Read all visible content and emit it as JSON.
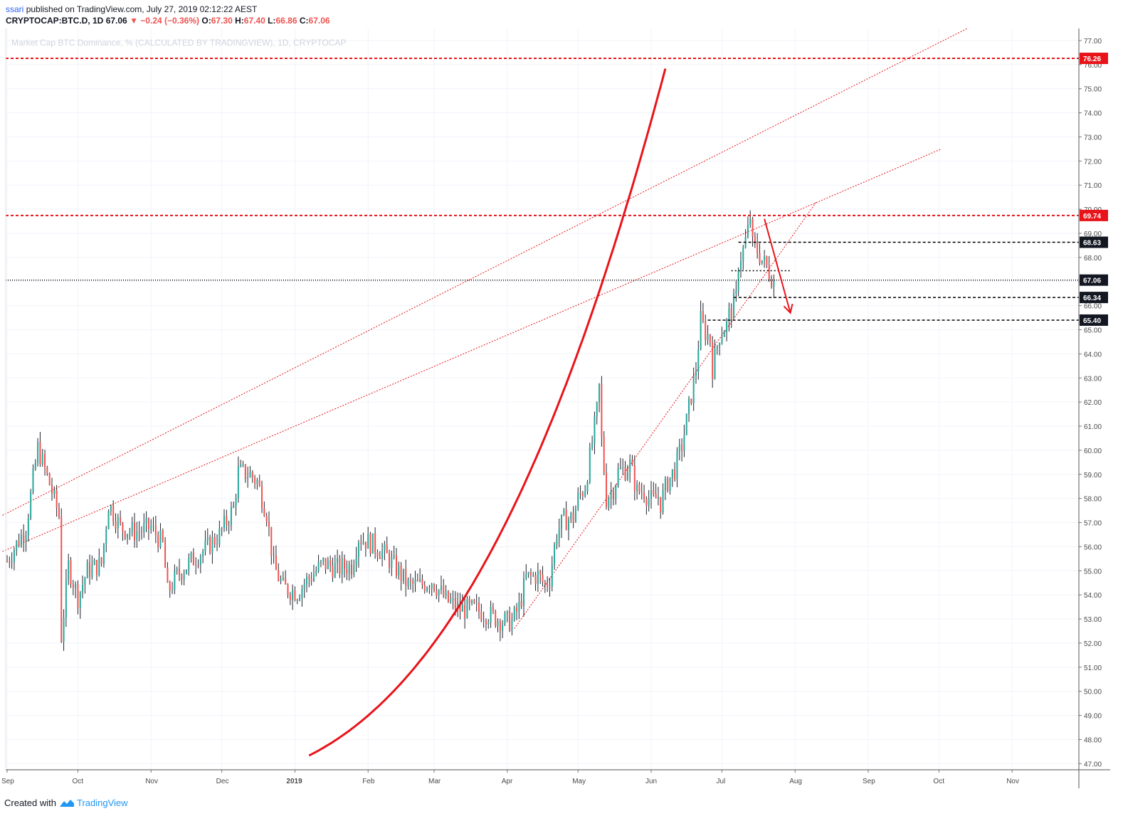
{
  "header": {
    "user": "ssari",
    "published": "published on TradingView.com, July 27, 2019 02:12:22 AEST",
    "symbol": "CRYPTOCAP:BTC.D, 1D",
    "last": "67.06",
    "change_arrow": "▼",
    "change": "−0.24 (−0.36%)",
    "o_label": "O:",
    "o": "67.30",
    "h_label": "H:",
    "h": "67.40",
    "l_label": "L:",
    "l": "66.86",
    "c_label": "C:",
    "c": "67.06"
  },
  "footer": {
    "created": "Created with",
    "brand": "TradingView"
  },
  "colors": {
    "up": "#26a69a",
    "down": "#ef5350",
    "annotation": "#e8141a",
    "dark_label": "#131722"
  },
  "chart_data": {
    "type": "bar",
    "title": "Market Cap BTC Dominance, % (CALCULATED BY TRADINGVIEW), 1D, CRYPTOCAP",
    "ylim": [
      46.8,
      77.5
    ],
    "y_ticks": [
      "47.00",
      "48.00",
      "49.00",
      "50.00",
      "51.00",
      "52.00",
      "53.00",
      "54.00",
      "55.00",
      "56.00",
      "57.00",
      "58.00",
      "59.00",
      "60.00",
      "61.00",
      "62.00",
      "63.00",
      "64.00",
      "65.00",
      "66.00",
      "67.00",
      "68.00",
      "69.00",
      "70.00",
      "71.00",
      "72.00",
      "73.00",
      "74.00",
      "75.00",
      "76.00",
      "77.00"
    ],
    "x_ticks": [
      {
        "label": "Sep",
        "day": 0
      },
      {
        "label": "Oct",
        "day": 30
      },
      {
        "label": "Nov",
        "day": 61
      },
      {
        "label": "Dec",
        "day": 91
      },
      {
        "label": "2019",
        "day": 122,
        "bold": true
      },
      {
        "label": "Feb",
        "day": 153
      },
      {
        "label": "Mar",
        "day": 181
      },
      {
        "label": "Apr",
        "day": 212
      },
      {
        "label": "May",
        "day": 242
      },
      {
        "label": "Jun",
        "day": 273
      },
      {
        "label": "Jul",
        "day": 303
      },
      {
        "label": "Aug",
        "day": 334
      },
      {
        "label": "Sep",
        "day": 365
      },
      {
        "label": "Oct",
        "day": 395
      },
      {
        "label": "Nov",
        "day": 426
      }
    ],
    "anchors": [
      [
        0,
        55.4
      ],
      [
        8,
        56.8
      ],
      [
        13,
        60.1
      ],
      [
        18,
        58.6
      ],
      [
        22,
        57.3
      ],
      [
        23,
        52.3
      ],
      [
        26,
        55.2
      ],
      [
        30,
        53.9
      ],
      [
        34,
        55.0
      ],
      [
        40,
        55.3
      ],
      [
        43,
        57.8
      ],
      [
        48,
        56.8
      ],
      [
        54,
        56.6
      ],
      [
        61,
        56.8
      ],
      [
        66,
        56.1
      ],
      [
        68,
        54.1
      ],
      [
        72,
        54.8
      ],
      [
        78,
        55.4
      ],
      [
        84,
        55.9
      ],
      [
        90,
        56.5
      ],
      [
        96,
        57.6
      ],
      [
        98,
        59.1
      ],
      [
        103,
        59.0
      ],
      [
        106,
        58.7
      ],
      [
        110,
        57.4
      ],
      [
        113,
        55.2
      ],
      [
        117,
        54.3
      ],
      [
        123,
        54.1
      ],
      [
        127,
        54.6
      ],
      [
        134,
        55.3
      ],
      [
        140,
        55.1
      ],
      [
        146,
        55.2
      ],
      [
        149,
        56.4
      ],
      [
        155,
        56.1
      ],
      [
        160,
        55.7
      ],
      [
        165,
        55.1
      ],
      [
        170,
        54.4
      ],
      [
        175,
        54.4
      ],
      [
        180,
        54.6
      ],
      [
        186,
        53.8
      ],
      [
        192,
        53.4
      ],
      [
        198,
        53.4
      ],
      [
        204,
        53.2
      ],
      [
        210,
        52.9
      ],
      [
        214,
        52.9
      ],
      [
        217,
        53.5
      ],
      [
        220,
        54.7
      ],
      [
        225,
        54.8
      ],
      [
        228,
        54.4
      ],
      [
        230,
        54.7
      ],
      [
        233,
        56.6
      ],
      [
        236,
        57.1
      ],
      [
        240,
        57.2
      ],
      [
        242,
        58.0
      ],
      [
        245,
        58.5
      ],
      [
        248,
        60.3
      ],
      [
        250,
        61.6
      ],
      [
        251,
        62.6
      ],
      [
        252,
        60.4
      ],
      [
        254,
        58.0
      ],
      [
        257,
        58.4
      ],
      [
        259,
        59.1
      ],
      [
        262,
        59.2
      ],
      [
        264,
        59.4
      ],
      [
        267,
        58.3
      ],
      [
        270,
        58.3
      ],
      [
        272,
        58.0
      ],
      [
        274,
        57.9
      ],
      [
        276,
        58.1
      ],
      [
        277,
        57.8
      ],
      [
        280,
        58.7
      ],
      [
        283,
        59.2
      ],
      [
        286,
        60.2
      ],
      [
        288,
        61.2
      ],
      [
        290,
        62.3
      ],
      [
        292,
        63.4
      ],
      [
        294,
        65.4
      ],
      [
        296,
        64.9
      ],
      [
        298,
        64.6
      ],
      [
        299,
        63.4
      ],
      [
        302,
        64.8
      ],
      [
        305,
        65.2
      ],
      [
        306,
        65.6
      ],
      [
        309,
        66.3
      ],
      [
        310,
        67.8
      ],
      [
        312,
        68.3
      ],
      [
        314,
        69.1
      ],
      [
        315,
        69.7
      ],
      [
        316,
        68.5
      ],
      [
        318,
        68.3
      ],
      [
        320,
        67.9
      ],
      [
        322,
        67.6
      ],
      [
        324,
        67.2
      ],
      [
        325,
        67.06
      ]
    ],
    "last_value": 67.06,
    "levels": [
      {
        "value": 76.26,
        "label": "76.26",
        "style": "red-dashed",
        "from_day": 0
      },
      {
        "value": 69.74,
        "label": "69.74",
        "style": "red-dashed",
        "from_day": 0
      },
      {
        "value": 68.63,
        "label": "68.63",
        "style": "black-dashed",
        "from_day": 310
      },
      {
        "value": 67.06,
        "label": "67.06",
        "style": "black-dotted",
        "from_day": 0
      },
      {
        "value": 66.34,
        "label": "66.34",
        "style": "black-dashed",
        "from_day": 308
      },
      {
        "value": 65.4,
        "label": "65.40",
        "style": "black-dashed",
        "from_day": 297
      }
    ],
    "short_level": {
      "value": 67.45,
      "from_day": 307,
      "to_day": 332
    },
    "trendlines": [
      {
        "p1": [
          -2,
          57.3
        ],
        "p2": [
          407,
          77.5
        ]
      },
      {
        "p1": [
          -2,
          55.8
        ],
        "p2": [
          396,
          72.5
        ]
      },
      {
        "p1": [
          215,
          52.6
        ],
        "p2": [
          343,
          70.3
        ]
      }
    ],
    "curve": {
      "base_day": 60,
      "a": 46.1,
      "b": 1.28e-05,
      "k": 2.72,
      "from_day": 128,
      "to_day": 365
    },
    "arrow": {
      "from": [
        321,
        69.6
      ],
      "to": [
        332,
        65.7
      ]
    }
  }
}
